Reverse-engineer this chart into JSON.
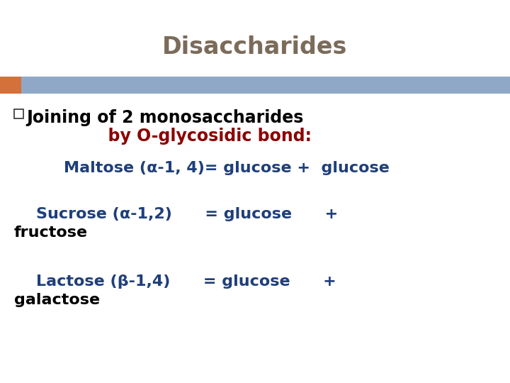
{
  "title": "Disaccharides",
  "title_color": "#7B6B5A",
  "title_fontsize": 24,
  "title_fontweight": "bold",
  "background_color": "#FFFFFF",
  "header_bar_color": "#8FA8C8",
  "header_bar_left_accent_color": "#D4703A",
  "bullet_box_color": "#333333",
  "line1_text": "Joining of 2 monosaccharides",
  "line1_color": "#000000",
  "line1_fontsize": 17,
  "line2_text": "              by O-glycosidic bond:",
  "line2_color": "#8B0000",
  "line2_fontsize": 17,
  "maltose_label": "Maltose (α-1, 4)= glucose +  glucose",
  "maltose_color": "#1F3F7A",
  "maltose_fontsize": 16,
  "sucrose_label": "    Sucrose (α-1,2)      = glucose      +",
  "sucrose_color": "#1F3F7A",
  "sucrose_fontsize": 16,
  "sucrose_line2": "fructose",
  "sucrose_line2_color": "#000000",
  "sucrose_line2_fontsize": 16,
  "lactose_label": "    Lactose (β-1,4)      = glucose      +",
  "lactose_color": "#1F3F7A",
  "lactose_fontsize": 16,
  "lactose_line2": "galactose",
  "lactose_line2_color": "#000000",
  "lactose_line2_fontsize": 16
}
